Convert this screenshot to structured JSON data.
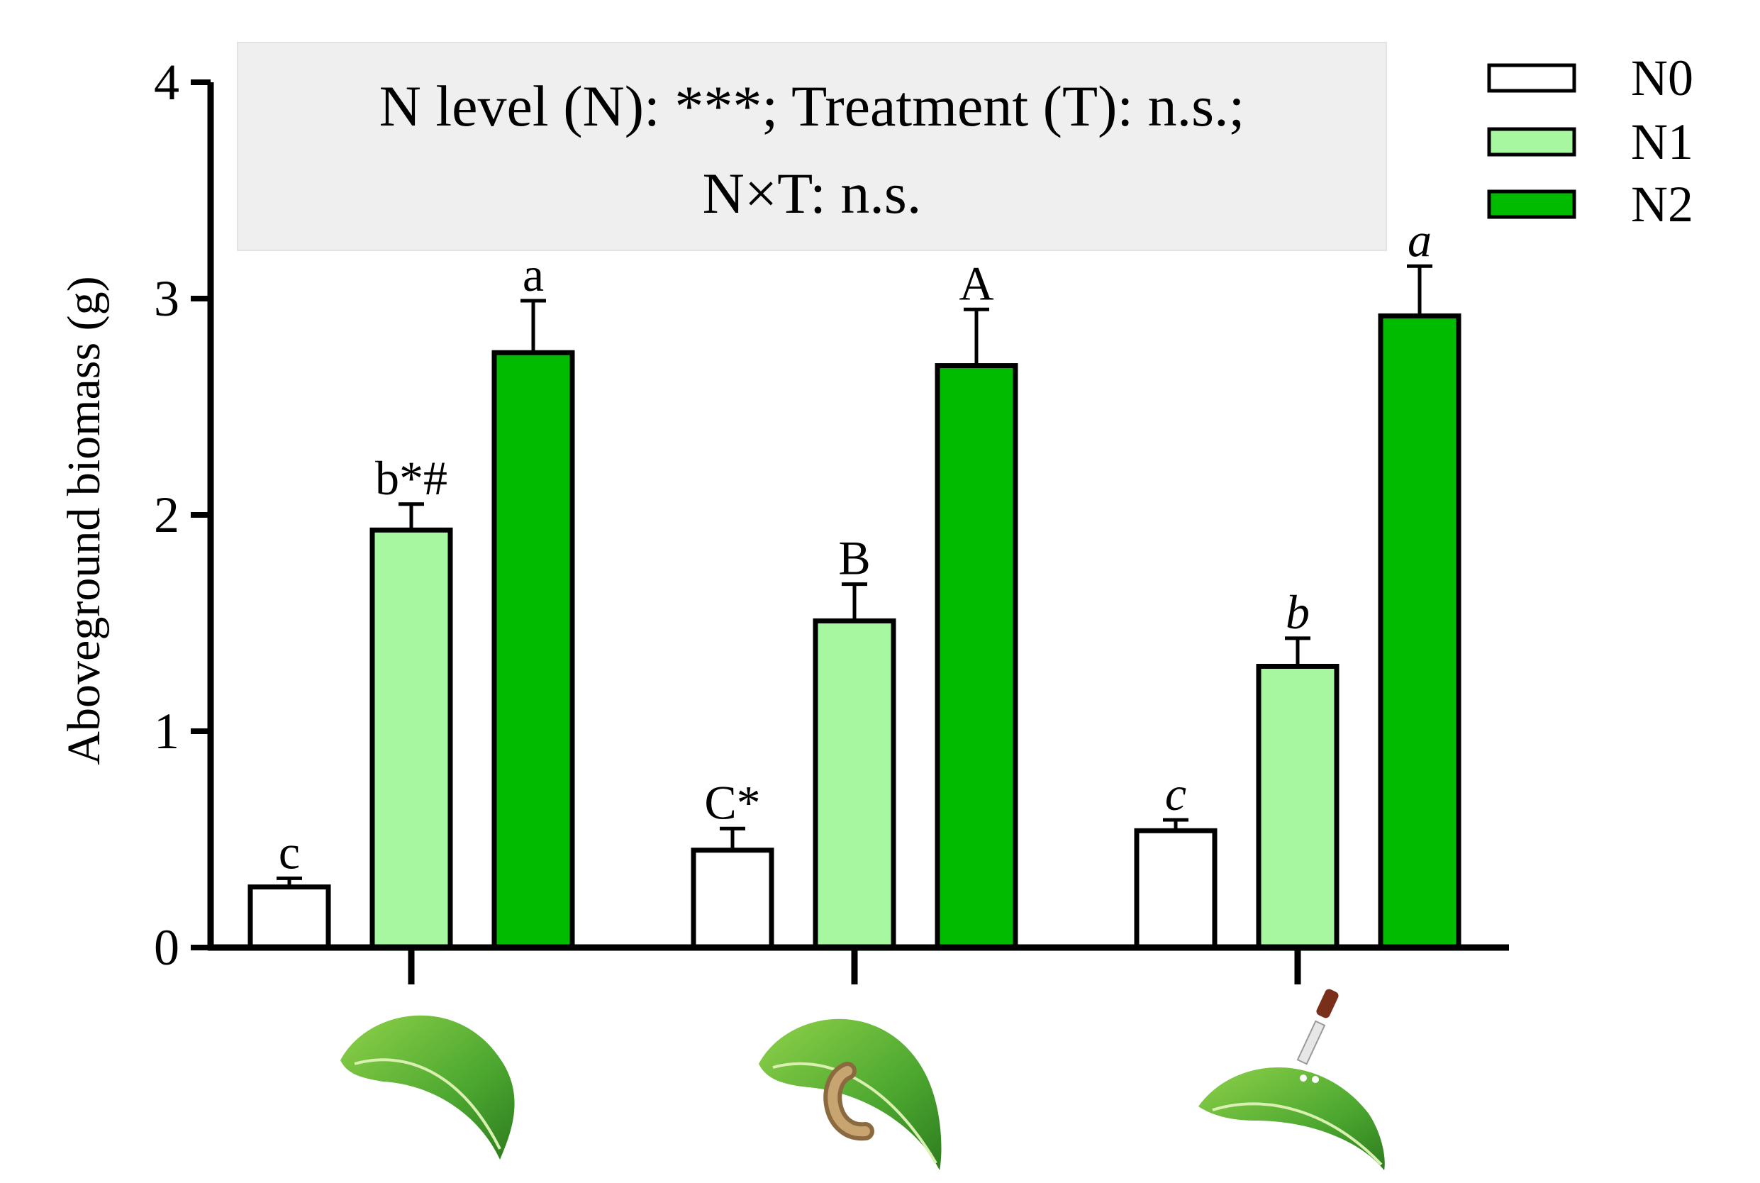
{
  "chart_data": {
    "type": "bar",
    "title": "",
    "ylabel": "Aboveground biomass (g)",
    "xlabel": "",
    "ylim": [
      0,
      4
    ],
    "yticks": [
      0,
      1,
      2,
      3,
      4
    ],
    "groups": [
      {
        "name": "undamaged-leaf",
        "icon": "intact-leaf-icon"
      },
      {
        "name": "caterpillar-damaged-leaf",
        "icon": "caterpillar-leaf-icon"
      },
      {
        "name": "dropper-treated-leaf",
        "icon": "dropper-leaf-icon"
      }
    ],
    "series": [
      {
        "name": "N0",
        "color": "#ffffff",
        "values": [
          0.28,
          0.45,
          0.54
        ],
        "errors": [
          0.04,
          0.1,
          0.05
        ],
        "labels": [
          "c",
          "C*",
          "c"
        ]
      },
      {
        "name": "N1",
        "color": "#a6f7a0",
        "values": [
          1.93,
          1.51,
          1.3
        ],
        "errors": [
          0.12,
          0.17,
          0.13
        ],
        "labels": [
          "b*#",
          "B",
          "b"
        ]
      },
      {
        "name": "N2",
        "color": "#00bb00",
        "values": [
          2.75,
          2.69,
          2.92
        ],
        "errors": [
          0.24,
          0.26,
          0.23
        ],
        "labels": [
          "a",
          "A",
          "a"
        ]
      }
    ],
    "label_italic_by_group": [
      false,
      false,
      true
    ],
    "annotation": {
      "line1": "N level (N): ***; Treatment (T): n.s.;",
      "line2": "N×T: n.s."
    },
    "legend_placement": "top-right"
  }
}
